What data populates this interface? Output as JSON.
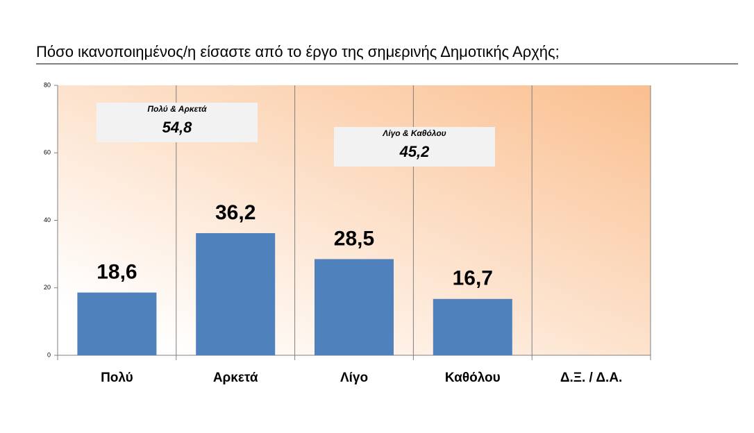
{
  "chart_data": {
    "type": "bar",
    "title": "Πόσο ικανοποιημένος/η είσαστε από το έργο της σημερινής Δημοτικής Αρχής;",
    "categories": [
      "Πολύ",
      "Αρκετά",
      "Λίγο",
      "Καθόλου",
      "Δ.Ξ. / Δ.Α."
    ],
    "values": [
      18.6,
      36.2,
      28.5,
      16.7,
      null
    ],
    "value_labels": [
      "18,6",
      "36,2",
      "28,5",
      "16,7",
      null
    ],
    "color": "#4f81bd",
    "ylim": [
      0,
      80
    ],
    "yticks": [
      0,
      20,
      40,
      60,
      80
    ],
    "annotations": [
      {
        "title": "Πολύ & Αρκετά",
        "text": "54,8"
      },
      {
        "title": "Λίγο & Καθόλου",
        "text": "45,2"
      }
    ]
  }
}
